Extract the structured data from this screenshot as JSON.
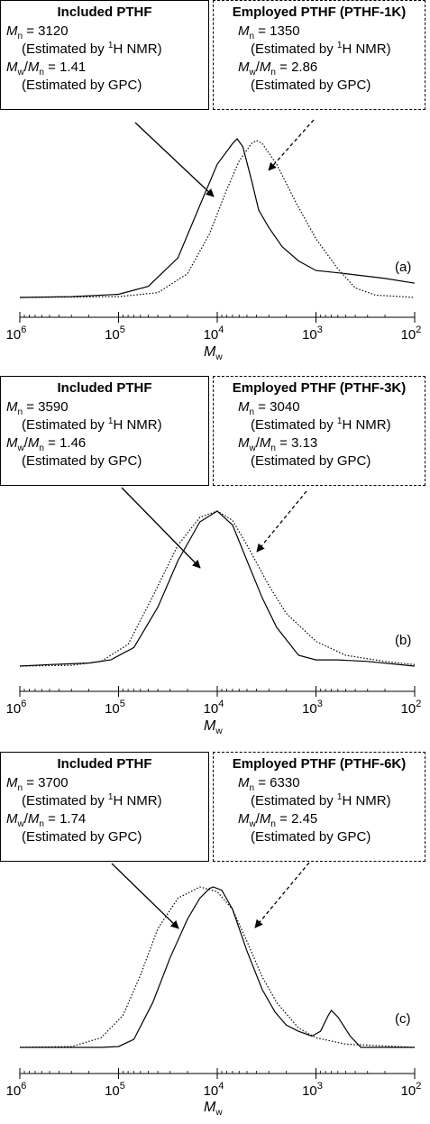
{
  "chart_data": [
    {
      "type": "line",
      "panel_label": "(a)",
      "xlabel": "Mw",
      "x_scale": "log",
      "x_axis_reversed": true,
      "xlim": [
        1000000,
        100
      ],
      "x_ticks": [
        1000000,
        100000,
        10000,
        1000,
        100
      ],
      "grid": false,
      "boxes": [
        {
          "title": "Included PTHF",
          "style": "solid",
          "mn": "3120",
          "mn_method": "(Estimated by ",
          "mn_method_end": "H NMR)",
          "pdi": "1.41",
          "pdi_method": "(Estimated by GPC)"
        },
        {
          "title": "Employed PTHF (PTHF-1K)",
          "style": "dashed",
          "mn": "1350",
          "mn_method": "(Estimated by ",
          "mn_method_end": "H NMR)",
          "pdi": "2.86",
          "pdi_method": "(Estimated by GPC)"
        }
      ],
      "series": [
        {
          "line": "solid",
          "points": [
            [
              1000000,
              0.0
            ],
            [
              300000,
              0.005
            ],
            [
              100000,
              0.02
            ],
            [
              50000,
              0.07
            ],
            [
              25000,
              0.25
            ],
            [
              15000,
              0.58
            ],
            [
              10000,
              0.84
            ],
            [
              7000,
              0.97
            ],
            [
              6300,
              1.0
            ],
            [
              5500,
              0.95
            ],
            [
              4500,
              0.74
            ],
            [
              3800,
              0.55
            ],
            [
              3000,
              0.44
            ],
            [
              2200,
              0.32
            ],
            [
              1500,
              0.23
            ],
            [
              1000,
              0.17
            ],
            [
              500,
              0.15
            ],
            [
              200,
              0.12
            ],
            [
              100,
              0.09
            ]
          ]
        },
        {
          "line": "dotted",
          "points": [
            [
              1000000,
              0.0
            ],
            [
              100000,
              0.005
            ],
            [
              40000,
              0.03
            ],
            [
              20000,
              0.15
            ],
            [
              12000,
              0.4
            ],
            [
              8000,
              0.68
            ],
            [
              6000,
              0.86
            ],
            [
              4500,
              0.97
            ],
            [
              4000,
              0.99
            ],
            [
              3500,
              0.97
            ],
            [
              2500,
              0.84
            ],
            [
              1600,
              0.6
            ],
            [
              1000,
              0.37
            ],
            [
              600,
              0.18
            ],
            [
              400,
              0.06
            ],
            [
              250,
              0.015
            ],
            [
              100,
              0.0
            ]
          ]
        }
      ]
    },
    {
      "type": "line",
      "panel_label": "(b)",
      "xlabel": "Mw",
      "x_scale": "log",
      "x_axis_reversed": true,
      "xlim": [
        1000000,
        100
      ],
      "x_ticks": [
        1000000,
        100000,
        10000,
        1000,
        100
      ],
      "grid": false,
      "boxes": [
        {
          "title": "Included PTHF",
          "style": "solid",
          "mn": "3590",
          "mn_method": "(Estimated by ",
          "mn_method_end": "H NMR)",
          "pdi": "1.46",
          "pdi_method": "(Estimated by GPC)"
        },
        {
          "title": "Employed PTHF (PTHF-3K)",
          "style": "dashed",
          "mn": "3040",
          "mn_method": "(Estimated by ",
          "mn_method_end": "H NMR)",
          "pdi": "3.13",
          "pdi_method": "(Estimated by GPC)"
        }
      ],
      "series": [
        {
          "line": "solid",
          "points": [
            [
              1000000,
              0.0
            ],
            [
              500000,
              0.01
            ],
            [
              200000,
              0.02
            ],
            [
              120000,
              0.04
            ],
            [
              70000,
              0.12
            ],
            [
              40000,
              0.38
            ],
            [
              25000,
              0.68
            ],
            [
              15000,
              0.93
            ],
            [
              10000,
              1.0
            ],
            [
              7000,
              0.91
            ],
            [
              5000,
              0.68
            ],
            [
              3500,
              0.44
            ],
            [
              2500,
              0.25
            ],
            [
              1500,
              0.07
            ],
            [
              1000,
              0.04
            ],
            [
              600,
              0.04
            ],
            [
              300,
              0.03
            ],
            [
              100,
              0.0
            ]
          ]
        },
        {
          "line": "dotted",
          "points": [
            [
              1000000,
              0.0
            ],
            [
              300000,
              0.005
            ],
            [
              150000,
              0.03
            ],
            [
              80000,
              0.14
            ],
            [
              45000,
              0.45
            ],
            [
              25000,
              0.78
            ],
            [
              15000,
              0.96
            ],
            [
              10000,
              1.0
            ],
            [
              7000,
              0.94
            ],
            [
              5000,
              0.78
            ],
            [
              3000,
              0.52
            ],
            [
              2000,
              0.34
            ],
            [
              1000,
              0.16
            ],
            [
              500,
              0.07
            ],
            [
              200,
              0.03
            ],
            [
              100,
              0.01
            ]
          ]
        }
      ]
    },
    {
      "type": "line",
      "panel_label": "(c)",
      "xlabel": "Mw",
      "x_scale": "log",
      "x_axis_reversed": true,
      "xlim": [
        1000000,
        100
      ],
      "x_ticks": [
        1000000,
        100000,
        10000,
        1000,
        100
      ],
      "grid": false,
      "boxes": [
        {
          "title": "Included PTHF",
          "style": "solid",
          "mn": "3700",
          "mn_method": "(Estimated by ",
          "mn_method_end": "H NMR)",
          "pdi": "1.74",
          "pdi_method": "(Estimated by GPC)"
        },
        {
          "title": "Employed PTHF (PTHF-6K)",
          "style": "dashed",
          "mn": "6330",
          "mn_method": "(Estimated by ",
          "mn_method_end": "H NMR)",
          "pdi": "2.45",
          "pdi_method": "(Estimated by GPC)"
        }
      ],
      "series": [
        {
          "line": "solid",
          "points": [
            [
              1000000,
              0.0
            ],
            [
              150000,
              0.0
            ],
            [
              100000,
              0.005
            ],
            [
              70000,
              0.05
            ],
            [
              45000,
              0.28
            ],
            [
              30000,
              0.56
            ],
            [
              20000,
              0.8
            ],
            [
              15000,
              0.93
            ],
            [
              12000,
              0.99
            ],
            [
              11000,
              1.0
            ],
            [
              9000,
              0.98
            ],
            [
              7000,
              0.86
            ],
            [
              5000,
              0.6
            ],
            [
              3500,
              0.36
            ],
            [
              2600,
              0.22
            ],
            [
              2000,
              0.14
            ],
            [
              1500,
              0.1
            ],
            [
              1100,
              0.07
            ],
            [
              900,
              0.1
            ],
            [
              750,
              0.2
            ],
            [
              700,
              0.23
            ],
            [
              600,
              0.19
            ],
            [
              450,
              0.07
            ],
            [
              350,
              0.0
            ],
            [
              100,
              0.0
            ]
          ]
        },
        {
          "line": "dotted",
          "points": [
            [
              1000000,
              0.0
            ],
            [
              300000,
              0.005
            ],
            [
              150000,
              0.06
            ],
            [
              90000,
              0.2
            ],
            [
              60000,
              0.45
            ],
            [
              40000,
              0.74
            ],
            [
              25000,
              0.93
            ],
            [
              15000,
              1.0
            ],
            [
              10000,
              0.97
            ],
            [
              7000,
              0.86
            ],
            [
              5000,
              0.66
            ],
            [
              3500,
              0.44
            ],
            [
              2500,
              0.28
            ],
            [
              1500,
              0.12
            ],
            [
              1000,
              0.06
            ],
            [
              500,
              0.02
            ],
            [
              100,
              0.0
            ]
          ]
        }
      ]
    }
  ]
}
